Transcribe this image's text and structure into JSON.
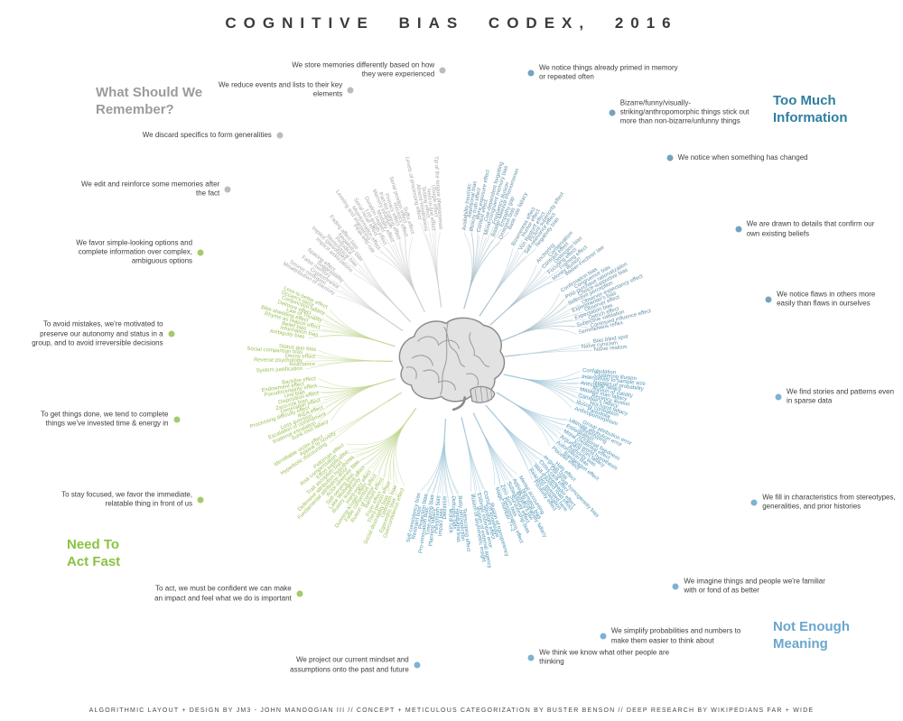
{
  "title": "COGNITIVE BIAS CODEX, 2016",
  "footer": "ALGORITHMIC LAYOUT + DESIGN BY JM3 - JOHN MANOOGIAN III // CONCEPT + METICULOUS CATEGORIZATION BY BUSTER BENSON // DEEP RESEARCH BY WIKIPEDIANS FAR + WIDE",
  "center_icon": "brain-illustration",
  "quadrants": [
    {
      "id": "too-much-information",
      "name": "Too Much Information",
      "header_color": "#2e7f9f",
      "label_color": "#6590a6",
      "line_color": "#a8c0cd",
      "dot_color": "#74a3bd",
      "angle_start": 6,
      "angle_end": 86,
      "groups": [
        {
          "annotation": "We notice things already primed in memory or repeated often",
          "ann_angle": 15.8,
          "ann_r": 334,
          "biases": [
            "Availability heuristic",
            "Attentional bias",
            "Illusory truth effect",
            "Mere exposure effect",
            "Context effect",
            "Cue-dependent forgetting",
            "Mood-congruent memory bias",
            "Frequency illusion",
            "Baader-Meinhof Phenomenon",
            "Empathy gap",
            "Omission bias",
            "Base rate fallacy"
          ]
        },
        {
          "annotation": "Bizarre/funny/visually-striking/anthropomorphic things stick out more than non-bizarre/unfunny things",
          "ann_angle": 33.1,
          "ann_r": 331,
          "biases": [
            "Bizarreness effect",
            "Humor effect",
            "Von Restorff effect",
            "Picture superiority effect",
            "Self-relevance effect",
            "Negativity bias"
          ]
        },
        {
          "annotation": "We notice when something has changed",
          "ann_angle": 47.1,
          "ann_r": 334,
          "biases": [
            "Anchoring",
            "Conservatism",
            "Contrast effect",
            "Distinction bias",
            "Focusing effect",
            "Framing effect",
            "Money illusion",
            "Weber-Fechner law"
          ]
        },
        {
          "annotation": "We are drawn to details that confirm our own existing beliefs",
          "ann_angle": 65.3,
          "ann_r": 353,
          "biases": [
            "Confirmation bias",
            "Congruence bias",
            "Post-purchase rationalization",
            "Choice-supportive bias",
            "Selective perception",
            "Observer-expectancy effect",
            "Experimenter's bias",
            "Observer effect",
            "Expectation bias",
            "Ostrich effect",
            "Subjective validation",
            "Continued influence effect",
            "Semmelweis reflex"
          ]
        },
        {
          "annotation": "We notice flaws in others more easily than flaws in ourselves",
          "ann_angle": 78.8,
          "ann_r": 361,
          "biases": [
            "Bias blind spot",
            "Naïve cynicism",
            "Naïve realism"
          ]
        }
      ]
    },
    {
      "id": "not-enough-meaning",
      "name": "Not Enough Meaning",
      "header_color": "#6ba6cd",
      "label_color": "#4f95b5",
      "line_color": "#9ec6d8",
      "dot_color": "#7fb2d2",
      "angle_start": 93,
      "angle_end": 193,
      "groups": [
        {
          "annotation": "We find stories and patterns even in sparse data",
          "ann_angle": 95.9,
          "ann_r": 367,
          "biases": [
            "Confabulation",
            "Clustering illusion",
            "Insensitivity to sample size",
            "Neglect of probability",
            "Anecdotal fallacy",
            "Illusion of validity",
            "Masked man fallacy",
            "Recency illusion",
            "Gambler's fallacy",
            "Hot-hand fallacy",
            "Illusory correlation",
            "Pareidolia",
            "Anthropomorphism"
          ]
        },
        {
          "annotation": "We fill in characteristics from stereotypes, generalities, and prior histories",
          "ann_angle": 114.6,
          "ann_r": 372,
          "biases": [
            "Group attribution error",
            "Ultimate attribution error",
            "Stereotyping",
            "Essentialism",
            "Functional fixedness",
            "Moral credential effect",
            "Just-world hypothesis",
            "Argument from fallacy",
            "Authority bias",
            "Automation bias",
            "Bandwagon effect",
            "Placebo effect"
          ]
        },
        {
          "annotation": "We imagine things and people we're familiar with or fond of as better",
          "ann_angle": 134.6,
          "ann_r": 353,
          "biases": [
            "Halo effect",
            "In-group bias",
            "Out-group homogeneity bias",
            "Cross-race effect",
            "Cheerleader effect",
            "Well-traveled road effect",
            "Not invented here",
            "Reactive devaluation",
            "Positivity effect"
          ]
        },
        {
          "annotation": "We simplify probabilities and numbers to make them easier to think about",
          "ann_angle": 150.6,
          "ann_r": 348,
          "biases": [
            "Mental accounting",
            "Normalcy bias",
            "Appeal to probability fallacy",
            "Murphy's law",
            "Subadditivity effect",
            "Survivorship bias",
            "Zero sum bias",
            "Denomination effect",
            "Magic number 7+-2"
          ]
        },
        {
          "annotation": "We think we know what other people are thinking",
          "ann_angle": 164.4,
          "ann_r": 339,
          "biases": [
            "Illusion of transparency",
            "Curse of knowledge",
            "Spotlight effect",
            "Extrinsic incentive error",
            "Illusion of external agency",
            "Illusion of asymmetric insight"
          ]
        },
        {
          "annotation": "We project our current mindset and assumptions onto the past and future",
          "ann_angle": 186.0,
          "ann_r": 337,
          "biases": [
            "Telescoping effect",
            "Rosy retrospection",
            "Hindsight bias",
            "Outcome bias",
            "Moral luck",
            "Declinism",
            "Impact bias",
            "Pessimism bias",
            "Planning fallacy",
            "Time-saving bias",
            "Pro-innovation bias",
            "Projection bias",
            "Restraint bias",
            "Self-consistency bias"
          ]
        }
      ]
    },
    {
      "id": "need-to-act-fast",
      "name": "Need To Act Fast",
      "header_color": "#8ac341",
      "label_color": "#9abf57",
      "line_color": "#c2d793",
      "dot_color": "#a2cb6a",
      "angle_start": 199,
      "angle_end": 295,
      "groups": [
        {
          "annotation": "To act, we must be confident we can make an impact and feel what we do is important",
          "ann_angle": 212.8,
          "ann_r": 305,
          "biases": [
            "Overconfidence effect",
            "Egocentric bias",
            "Optimism bias",
            "Social desirability bias",
            "Third-person effect",
            "Forer effect",
            "Barnum effect",
            "Illusion of control",
            "False consensus effect",
            "Dunning-Kruger effect",
            "Hard-easy effect",
            "Illusory superiority",
            "Lake Wobegone effect",
            "Self-serving bias",
            "Actor-observer bias",
            "Fundamental attribution error",
            "Defensive attribution hypothesis",
            "Trait ascription bias",
            "Effort justification",
            "Risk compensation",
            "Peltzman effect"
          ]
        },
        {
          "annotation": "To stay focused, we favor the immediate, relatable thing in front of us",
          "ann_angle": 241.1,
          "ann_r": 314,
          "biases": [
            "Hyperbolic discounting",
            "Appeal to novelty",
            "Identifiable victim effect"
          ]
        },
        {
          "annotation": "To get things done, we tend to complete things we've invested time & energy in",
          "ann_angle": 258.2,
          "ann_r": 308,
          "biases": [
            "Sunk cost fallacy",
            "Irrational escalation",
            "Escalation of commitment",
            "Loss aversion",
            "IKEA effect",
            "Processing difficulty effect",
            "Generation effect",
            "Zero-risk bias",
            "Disposition effect",
            "Unit bias",
            "Pseudocertainty effect",
            "Endowment effect",
            "Backfire effect"
          ]
        },
        {
          "annotation": "To avoid mistakes, we're motivated to preserve our autonomy and status in a group, and to avoid irreversible decisions",
          "ann_angle": 275.9,
          "ann_r": 309,
          "biases": [
            "System justification",
            "Reactance",
            "Reverse psychology",
            "Decoy effect",
            "Social comparison bias",
            "Status quo bias"
          ]
        },
        {
          "annotation": "We favor simple-looking options and complete information over complex, ambiguous options",
          "ann_angle": 294.0,
          "ann_r": 301,
          "biases": [
            "Ambiguity bias",
            "Information bias",
            "Belief bias",
            "Rhyme as reason effect",
            "Bike-shedding effect",
            "Law of Triviality",
            "Delmore effect",
            "Conjunction fallacy",
            "Occam's razor",
            "Less-is-better effect"
          ]
        }
      ]
    },
    {
      "id": "what-should-we-remember",
      "name": "What Should We Remember?",
      "header_color": "#9b9b9b",
      "label_color": "#a6a6a6",
      "line_color": "#cccccc",
      "dot_color": "#bcbcbc",
      "angle_start": 300,
      "angle_end": 357,
      "groups": [
        {
          "annotation": "We edit and reinforce some memories after the fact",
          "ann_angle": 308.1,
          "ann_r": 311,
          "biases": [
            "Misattribution of memory",
            "Source confusion",
            "Cryptomnesia",
            "False memory",
            "Suggestibility",
            "Spacing effect"
          ]
        },
        {
          "annotation": "We discard specifics to form generalities",
          "ann_angle": 323.4,
          "ann_r": 314,
          "biases": [
            "Implicit associations",
            "Implicit stereotypes",
            "Stereotypical bias",
            "Prejudice",
            "Negativity bias",
            "Fading affect bias"
          ]
        },
        {
          "annotation": "We reduce events and lists to their key elements",
          "ann_angle": 340.2,
          "ann_r": 321,
          "biases": [
            "Peak-end rule",
            "Leveling and sharpening",
            "Misinformation effect",
            "Serial recall effect",
            "List-length effect",
            "Duration neglect",
            "Modality effect",
            "Memory inhibition",
            "Part-list cueing effect",
            "Primacy effect",
            "Recency effect",
            "Serial position effect",
            "Suffix effect"
          ]
        },
        {
          "annotation": "We store memories differently based on how they were experienced",
          "ann_angle": 358.8,
          "ann_r": 324,
          "biases": [
            "Levels of processing effect",
            "Absent-mindedness",
            "Testing effect",
            "Next-in-line effect",
            "Google effect",
            "Tip of the tongue phenomenon"
          ]
        }
      ]
    }
  ]
}
